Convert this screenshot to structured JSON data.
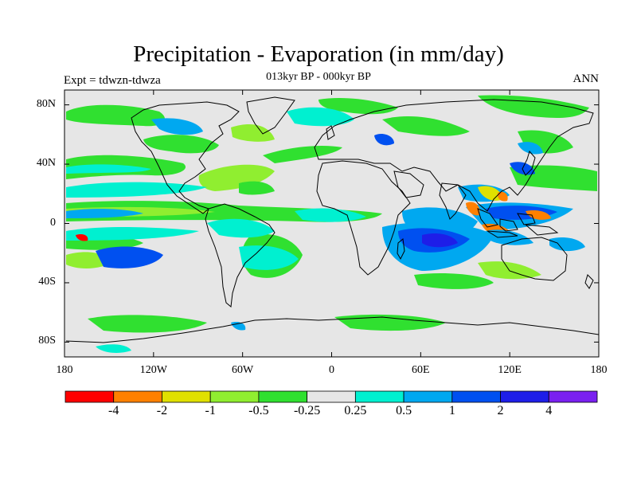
{
  "title": "Precipitation - Evaporation (in mm/day)",
  "subtitle": "013kyr BP - 000kyr BP",
  "experiment_label": "Expt = tdwzn-tdwza",
  "season_label": "ANN",
  "lat_ticks": [
    {
      "value": 80,
      "label": "80N"
    },
    {
      "value": 40,
      "label": "40N"
    },
    {
      "value": 0,
      "label": "0"
    },
    {
      "value": -40,
      "label": "40S"
    },
    {
      "value": -80,
      "label": "80S"
    }
  ],
  "lon_ticks": [
    {
      "value": -180,
      "label": "180"
    },
    {
      "value": -120,
      "label": "120W"
    },
    {
      "value": -60,
      "label": "60W"
    },
    {
      "value": 0,
      "label": "0"
    },
    {
      "value": 60,
      "label": "60E"
    },
    {
      "value": 120,
      "label": "120E"
    },
    {
      "value": 180,
      "label": "180"
    }
  ],
  "colorbar": {
    "colors": [
      "#ff0000",
      "#ff8000",
      "#e0e000",
      "#90ee30",
      "#30e030",
      "#e6e6e6",
      "#00f0d0",
      "#00a8f0",
      "#0050f0",
      "#1e1ee8",
      "#7a20f0"
    ],
    "labels": [
      "-4",
      "-2",
      "-1",
      "-0.5",
      "-0.25",
      "0.25",
      "0.5",
      "1",
      "2",
      "4"
    ]
  },
  "colors": {
    "background": "#e6e6e6",
    "land_outline": "#000000"
  }
}
